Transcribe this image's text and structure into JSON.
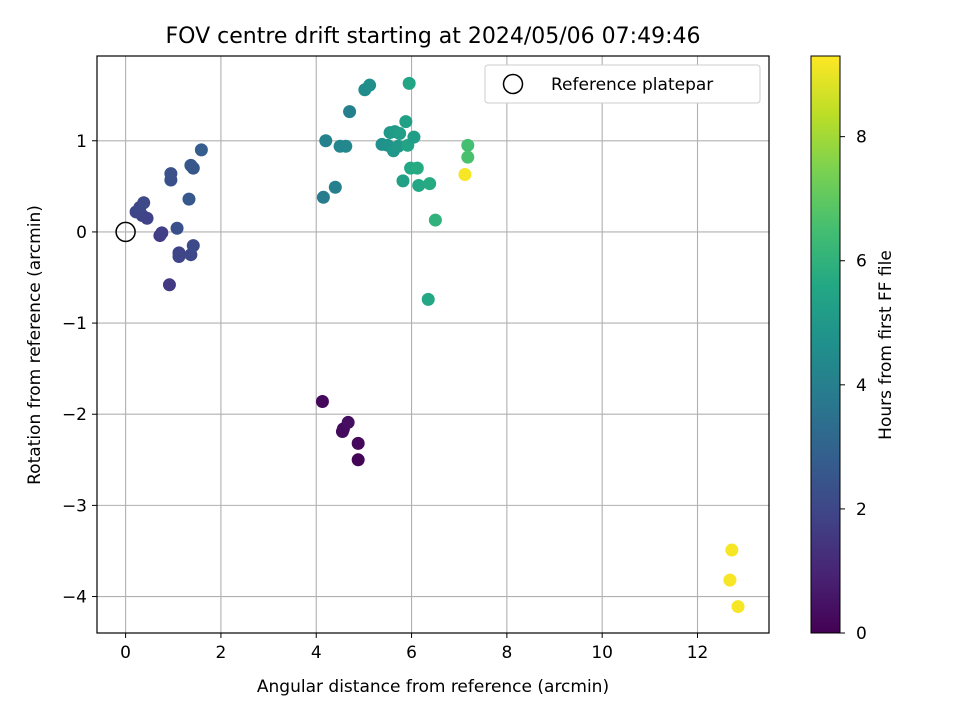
{
  "chart_data": {
    "type": "scatter",
    "title": "FOV centre drift starting at 2024/05/06 07:49:46",
    "xlabel": "Angular distance from reference (arcmin)",
    "ylabel": "Rotation from reference (arcmin)",
    "xlim": [
      -0.6,
      13.5
    ],
    "ylim": [
      -4.4,
      1.93
    ],
    "xticks": [
      0,
      2,
      4,
      6,
      8,
      10,
      12
    ],
    "yticks": [
      1,
      0,
      -1,
      -2,
      -3,
      -4
    ],
    "grid": true,
    "legend_position": "top-right",
    "colormap": "viridis",
    "colorbar": {
      "label": "Hours from first FF file",
      "min": 0,
      "max": 9.3,
      "ticks": [
        0,
        2,
        4,
        6,
        8
      ]
    },
    "reference": {
      "label": "Reference platepar",
      "x": 0,
      "y": 0
    },
    "points": [
      {
        "x": 4.13,
        "y": -1.86,
        "t": 0.2
      },
      {
        "x": 4.55,
        "y": -2.19,
        "t": 0.3
      },
      {
        "x": 4.57,
        "y": -2.16,
        "t": 0.25
      },
      {
        "x": 4.67,
        "y": -2.09,
        "t": 0.35
      },
      {
        "x": 4.88,
        "y": -2.32,
        "t": 0.2
      },
      {
        "x": 4.88,
        "y": -2.5,
        "t": 0.1
      },
      {
        "x": 0.92,
        "y": -0.58,
        "t": 1.6
      },
      {
        "x": 0.72,
        "y": -0.04,
        "t": 1.7
      },
      {
        "x": 0.76,
        "y": -0.01,
        "t": 1.75
      },
      {
        "x": 0.35,
        "y": 0.18,
        "t": 1.9
      },
      {
        "x": 0.45,
        "y": 0.15,
        "t": 1.85
      },
      {
        "x": 0.22,
        "y": 0.22,
        "t": 1.95
      },
      {
        "x": 0.3,
        "y": 0.27,
        "t": 2.0
      },
      {
        "x": 0.38,
        "y": 0.32,
        "t": 2.05
      },
      {
        "x": 1.12,
        "y": -0.23,
        "t": 1.9
      },
      {
        "x": 1.12,
        "y": -0.27,
        "t": 1.95
      },
      {
        "x": 1.37,
        "y": -0.25,
        "t": 2.0
      },
      {
        "x": 1.42,
        "y": -0.15,
        "t": 2.1
      },
      {
        "x": 1.08,
        "y": 0.04,
        "t": 2.3
      },
      {
        "x": 0.95,
        "y": 0.57,
        "t": 2.3
      },
      {
        "x": 0.95,
        "y": 0.64,
        "t": 2.35
      },
      {
        "x": 1.33,
        "y": 0.36,
        "t": 2.6
      },
      {
        "x": 1.37,
        "y": 0.73,
        "t": 2.5
      },
      {
        "x": 1.42,
        "y": 0.7,
        "t": 2.55
      },
      {
        "x": 1.59,
        "y": 0.9,
        "t": 2.75
      },
      {
        "x": 4.15,
        "y": 0.38,
        "t": 3.9
      },
      {
        "x": 4.4,
        "y": 0.49,
        "t": 4.0
      },
      {
        "x": 4.2,
        "y": 1.0,
        "t": 4.1
      },
      {
        "x": 4.5,
        "y": 0.94,
        "t": 4.3
      },
      {
        "x": 4.62,
        "y": 0.94,
        "t": 4.35
      },
      {
        "x": 4.7,
        "y": 1.32,
        "t": 4.0
      },
      {
        "x": 5.02,
        "y": 1.56,
        "t": 4.5
      },
      {
        "x": 5.12,
        "y": 1.61,
        "t": 4.6
      },
      {
        "x": 5.95,
        "y": 1.63,
        "t": 5.5
      },
      {
        "x": 5.38,
        "y": 0.96,
        "t": 4.7
      },
      {
        "x": 5.5,
        "y": 0.95,
        "t": 4.8
      },
      {
        "x": 5.55,
        "y": 1.09,
        "t": 5.0
      },
      {
        "x": 5.65,
        "y": 1.1,
        "t": 5.1
      },
      {
        "x": 5.75,
        "y": 1.08,
        "t": 5.2
      },
      {
        "x": 5.88,
        "y": 1.21,
        "t": 5.3
      },
      {
        "x": 5.62,
        "y": 0.89,
        "t": 4.9
      },
      {
        "x": 5.72,
        "y": 0.94,
        "t": 5.0
      },
      {
        "x": 5.92,
        "y": 0.95,
        "t": 5.4
      },
      {
        "x": 6.05,
        "y": 1.04,
        "t": 5.2
      },
      {
        "x": 5.82,
        "y": 0.56,
        "t": 5.3
      },
      {
        "x": 5.98,
        "y": 0.7,
        "t": 5.6
      },
      {
        "x": 6.12,
        "y": 0.7,
        "t": 5.7
      },
      {
        "x": 6.15,
        "y": 0.51,
        "t": 5.6
      },
      {
        "x": 6.38,
        "y": 0.53,
        "t": 5.7
      },
      {
        "x": 6.5,
        "y": 0.13,
        "t": 6.0
      },
      {
        "x": 6.35,
        "y": -0.74,
        "t": 5.6
      },
      {
        "x": 7.18,
        "y": 0.95,
        "t": 6.5
      },
      {
        "x": 7.18,
        "y": 0.82,
        "t": 6.6
      },
      {
        "x": 7.12,
        "y": 0.63,
        "t": 9.2
      },
      {
        "x": 12.72,
        "y": -3.49,
        "t": 9.2
      },
      {
        "x": 12.68,
        "y": -3.82,
        "t": 9.2
      },
      {
        "x": 12.85,
        "y": -4.11,
        "t": 9.2
      }
    ]
  }
}
